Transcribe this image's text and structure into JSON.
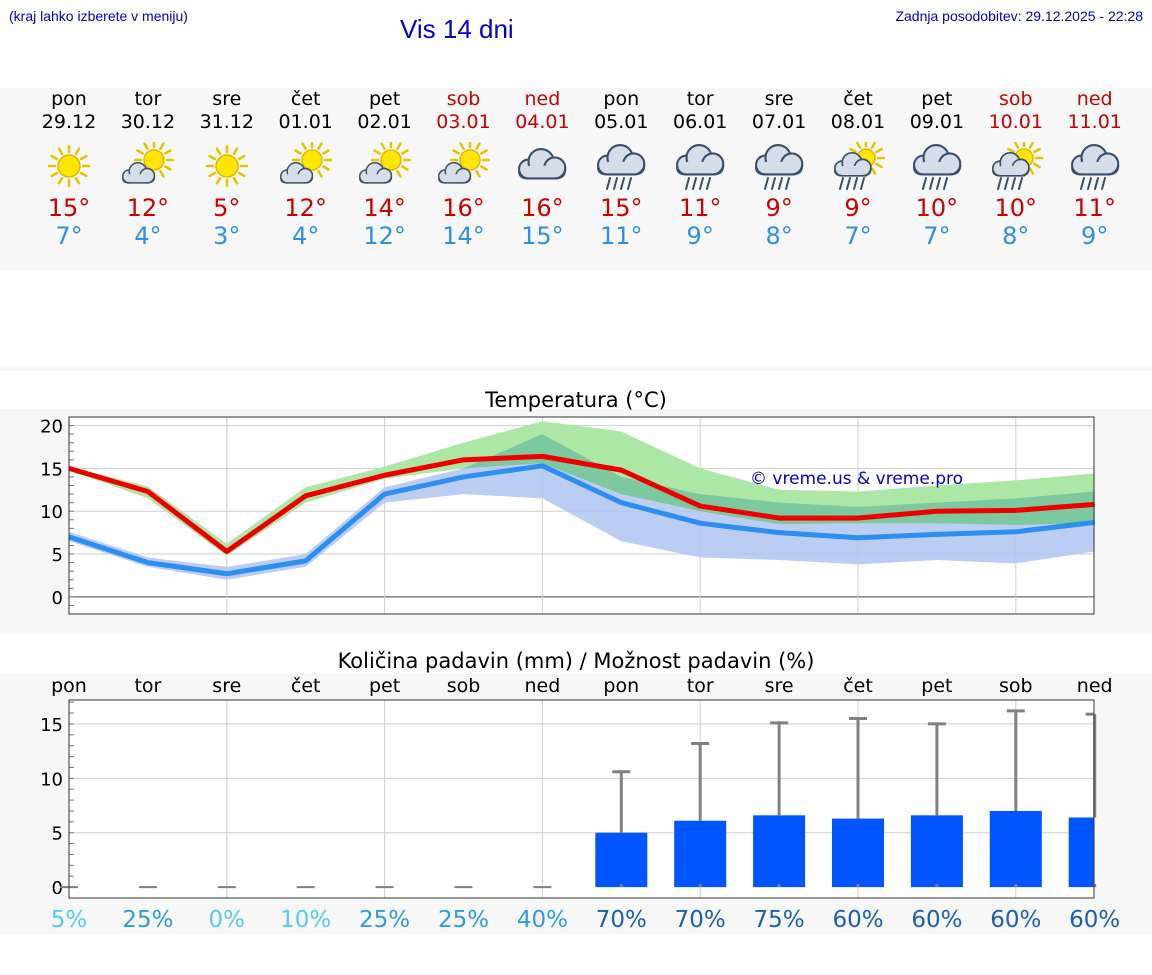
{
  "header": {
    "location_hint": "(kraj lahko izberete v meniju)",
    "title": "Vis 14 dni",
    "updated": "Zadnja posodobitev: 29.12.2025 - 22:28"
  },
  "days": [
    {
      "name": "pon",
      "date": "29.12",
      "icon": "sun-icon",
      "tmax": "15°",
      "tmin": "7°",
      "weekend": false
    },
    {
      "name": "tor",
      "date": "30.12",
      "icon": "sun-cloud-icon",
      "tmax": "12°",
      "tmin": "4°",
      "weekend": false
    },
    {
      "name": "sre",
      "date": "31.12",
      "icon": "sun-icon",
      "tmax": "5°",
      "tmin": "3°",
      "weekend": false
    },
    {
      "name": "čet",
      "date": "01.01",
      "icon": "sun-cloud-icon",
      "tmax": "12°",
      "tmin": "4°",
      "weekend": false
    },
    {
      "name": "pet",
      "date": "02.01",
      "icon": "sun-cloud-icon",
      "tmax": "14°",
      "tmin": "12°",
      "weekend": false
    },
    {
      "name": "sob",
      "date": "03.01",
      "icon": "sun-cloud-icon",
      "tmax": "16°",
      "tmin": "14°",
      "weekend": true
    },
    {
      "name": "ned",
      "date": "04.01",
      "icon": "cloud-icon",
      "tmax": "16°",
      "tmin": "15°",
      "weekend": true
    },
    {
      "name": "pon",
      "date": "05.01",
      "icon": "rain-cloud-icon",
      "tmax": "15°",
      "tmin": "11°",
      "weekend": false
    },
    {
      "name": "tor",
      "date": "06.01",
      "icon": "rain-cloud-icon",
      "tmax": "11°",
      "tmin": "9°",
      "weekend": false
    },
    {
      "name": "sre",
      "date": "07.01",
      "icon": "rain-cloud-icon",
      "tmax": "9°",
      "tmin": "8°",
      "weekend": false
    },
    {
      "name": "čet",
      "date": "08.01",
      "icon": "sun-rain-icon",
      "tmax": "9°",
      "tmin": "7°",
      "weekend": false
    },
    {
      "name": "pet",
      "date": "09.01",
      "icon": "rain-cloud-icon",
      "tmax": "10°",
      "tmin": "7°",
      "weekend": false
    },
    {
      "name": "sob",
      "date": "10.01",
      "icon": "sun-rain-icon",
      "tmax": "10°",
      "tmin": "8°",
      "weekend": true
    },
    {
      "name": "ned",
      "date": "11.01",
      "icon": "rain-cloud-icon",
      "tmax": "11°",
      "tmin": "9°",
      "weekend": true
    }
  ],
  "colors": {
    "max_line": "#ee0000",
    "min_line": "#2b8ef0",
    "max_band": "#a8e6a0",
    "min_band": "#b0c4f2",
    "overlap_band": "#7cc9a0",
    "bar": "#0055ff",
    "weekend_text": "#cc0000",
    "link_text": "#0000cc"
  },
  "chart_data": [
    {
      "type": "line",
      "title": "Temperatura (°C)",
      "watermark": "© vreme.us & vreme.pro",
      "yticks": [
        0,
        5,
        10,
        15,
        20
      ],
      "ylim": [
        -2,
        21
      ],
      "grid": true,
      "x": [
        "29.12",
        "30.12",
        "31.12",
        "01.01",
        "02.01",
        "03.01",
        "04.01",
        "05.01",
        "06.01",
        "07.01",
        "08.01",
        "09.01",
        "10.01",
        "11.01"
      ],
      "series": [
        {
          "key": "max",
          "values": [
            15,
            12.3,
            5.3,
            11.8,
            14.2,
            16,
            16.4,
            14.8,
            10.6,
            9.2,
            9.2,
            10,
            10.1,
            10.8
          ],
          "band_low": [
            14.8,
            11.5,
            4.8,
            11,
            13.8,
            15,
            15.6,
            12,
            10,
            8.5,
            8.6,
            8.6,
            8.4,
            8.6
          ],
          "band_high": [
            15.2,
            12.9,
            6.2,
            12.8,
            15.2,
            18,
            20.5,
            19.3,
            15,
            12.5,
            12.3,
            13,
            13.6,
            14.4
          ]
        },
        {
          "key": "min",
          "values": [
            7,
            4,
            2.7,
            4.2,
            12,
            14,
            15.3,
            11,
            8.6,
            7.5,
            6.9,
            7.3,
            7.6,
            8.7
          ],
          "band_low": [
            6.5,
            3.5,
            2,
            3.5,
            11,
            12,
            11.5,
            6.5,
            4.6,
            4.3,
            3.8,
            4.3,
            3.9,
            5.3
          ],
          "band_high": [
            7.6,
            4.6,
            3.5,
            5,
            12.8,
            15,
            19,
            14,
            12,
            11,
            10.5,
            11,
            11.5,
            12.3
          ]
        }
      ]
    },
    {
      "type": "bar",
      "title": "Količina padavin (mm) / Možnost padavin (%)",
      "categories": [
        "pon",
        "tor",
        "sre",
        "čet",
        "pet",
        "sob",
        "ned",
        "pon",
        "tor",
        "sre",
        "čet",
        "pet",
        "sob",
        "ned"
      ],
      "values": [
        0,
        0,
        0,
        0,
        0,
        0,
        0,
        5,
        6.1,
        6.6,
        6.3,
        6.6,
        7,
        6.4
      ],
      "error_high": [
        0,
        0,
        0,
        0,
        0,
        0,
        0,
        10.6,
        13.2,
        15.1,
        15.5,
        15,
        16.2,
        15.9
      ],
      "yticks": [
        0,
        5,
        10,
        15
      ],
      "ylim": [
        -1,
        17.2
      ],
      "probability": [
        "5%",
        "25%",
        "0%",
        "10%",
        "25%",
        "25%",
        "40%",
        "70%",
        "70%",
        "75%",
        "60%",
        "60%",
        "60%",
        "60%"
      ],
      "probability_colors": [
        "#55ccee",
        "#2f9be0",
        "#55ccee",
        "#55ccee",
        "#2f9be0",
        "#2f9be0",
        "#2f9be0",
        "#1a5fb0",
        "#1a5fb0",
        "#1a5fb0",
        "#1a5fb0",
        "#1a5fb0",
        "#1a5fb0",
        "#1a5fb0"
      ]
    }
  ]
}
